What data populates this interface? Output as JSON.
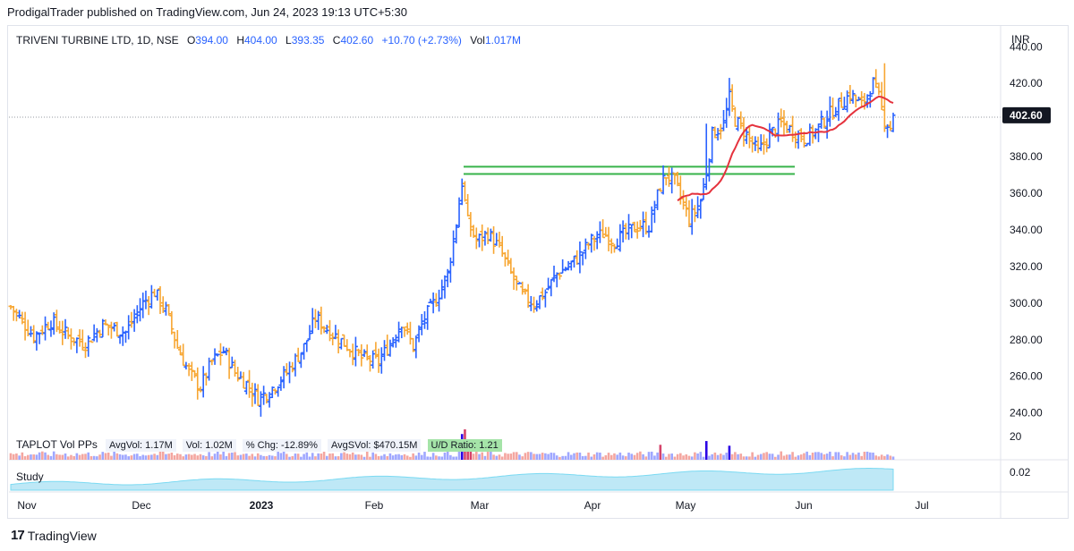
{
  "header": {
    "publisher_text": "ProdigalTrader published on TradingView.com, Jun 24, 2023 19:13 UTC+5:30"
  },
  "legend": {
    "symbol": "TRIVENI TURBINE LTD, 1D, NSE",
    "open_label": "O",
    "open": "394.00",
    "high_label": "H",
    "high": "404.00",
    "low_label": "L",
    "low": "393.35",
    "close_label": "C",
    "close": "402.60",
    "change": "+10.70 (+2.73%)",
    "volume_label": "Vol",
    "volume": "1.017M"
  },
  "volume_panel": {
    "title": "TAPLOT Vol PPs",
    "avg_vol": "AvgVol: 1.17M",
    "vol": "Vol: 1.02M",
    "pct_chg": "% Chg: -12.89%",
    "avg_dollar_vol": "AvgSVol: $470.15M",
    "ud_ratio": "U/D Ratio: 1.21",
    "axis_label": "20"
  },
  "study_panel": {
    "label": "Study",
    "axis_label": "0.02"
  },
  "footer": {
    "brand": "TradingView",
    "logo_glyph": "17"
  },
  "colors": {
    "up_bar": "#2962ff",
    "down_bar": "#f7a632",
    "moving_average": "#e5323d",
    "support_lines": "#37b34a",
    "price_tag_bg": "#131722"
  },
  "chart_data": {
    "type": "ohlc_bar",
    "symbol": "TRIVENI TURBINE LTD",
    "interval": "1D",
    "exchange": "NSE",
    "currency_label": "INR",
    "y_ticks": [
      240,
      260,
      280,
      300,
      320,
      340,
      360,
      380,
      400,
      420,
      440
    ],
    "y_tick_labels": [
      "240.00",
      "260.00",
      "280.00",
      "300.00",
      "320.00",
      "340.00",
      "360.00",
      "380.00",
      "400.00",
      "420.00",
      "440.00"
    ],
    "ylim": [
      232,
      446
    ],
    "last_price": 402.6,
    "last_price_label": "402.60",
    "x_tick_labels": [
      "Nov",
      "Dec",
      "2023",
      "Feb",
      "Mar",
      "Apr",
      "May",
      "Jun",
      "Jul"
    ],
    "horizontal_levels": [
      374.5,
      370.5
    ],
    "path_points": [
      [
        0,
        298
      ],
      [
        8,
        282
      ],
      [
        14,
        290
      ],
      [
        20,
        282
      ],
      [
        26,
        278
      ],
      [
        32,
        288
      ],
      [
        40,
        284
      ],
      [
        46,
        300
      ],
      [
        50,
        306
      ],
      [
        54,
        296
      ],
      [
        58,
        276
      ],
      [
        62,
        262
      ],
      [
        66,
        254
      ],
      [
        70,
        268
      ],
      [
        74,
        274
      ],
      [
        78,
        262
      ],
      [
        82,
        256
      ],
      [
        86,
        248
      ],
      [
        90,
        252
      ],
      [
        96,
        262
      ],
      [
        102,
        276
      ],
      [
        106,
        292
      ],
      [
        110,
        286
      ],
      [
        116,
        278
      ],
      [
        122,
        270
      ],
      [
        128,
        268
      ],
      [
        132,
        278
      ],
      [
        136,
        290
      ],
      [
        140,
        276
      ],
      [
        144,
        292
      ],
      [
        148,
        302
      ],
      [
        152,
        316
      ],
      [
        155,
        344
      ],
      [
        157,
        366
      ],
      [
        159,
        344
      ],
      [
        162,
        334
      ],
      [
        166,
        338
      ],
      [
        170,
        330
      ],
      [
        174,
        316
      ],
      [
        178,
        304
      ],
      [
        182,
        300
      ],
      [
        186,
        306
      ],
      [
        190,
        316
      ],
      [
        194,
        320
      ],
      [
        198,
        326
      ],
      [
        202,
        334
      ],
      [
        206,
        338
      ],
      [
        210,
        334
      ],
      [
        214,
        338
      ],
      [
        218,
        342
      ],
      [
        222,
        342
      ],
      [
        226,
        364
      ],
      [
        228,
        370
      ],
      [
        231,
        366
      ],
      [
        234,
        354
      ],
      [
        236,
        346
      ],
      [
        238,
        350
      ],
      [
        240,
        356
      ],
      [
        242,
        372
      ],
      [
        244,
        392
      ],
      [
        248,
        398
      ],
      [
        250,
        412
      ],
      [
        252,
        400
      ],
      [
        256,
        392
      ],
      [
        260,
        382
      ],
      [
        264,
        392
      ],
      [
        268,
        398
      ],
      [
        272,
        394
      ],
      [
        276,
        390
      ],
      [
        280,
        394
      ],
      [
        284,
        402
      ],
      [
        288,
        408
      ],
      [
        292,
        414
      ],
      [
        296,
        408
      ],
      [
        300,
        420
      ],
      [
        302,
        412
      ],
      [
        304,
        400
      ],
      [
        306,
        396
      ],
      [
        307,
        402
      ]
    ],
    "bars": [],
    "ma_points": [],
    "volume": {
      "label": "TAPLOT Vol PPs",
      "values": []
    },
    "study": {
      "label": "Study",
      "values": []
    }
  }
}
